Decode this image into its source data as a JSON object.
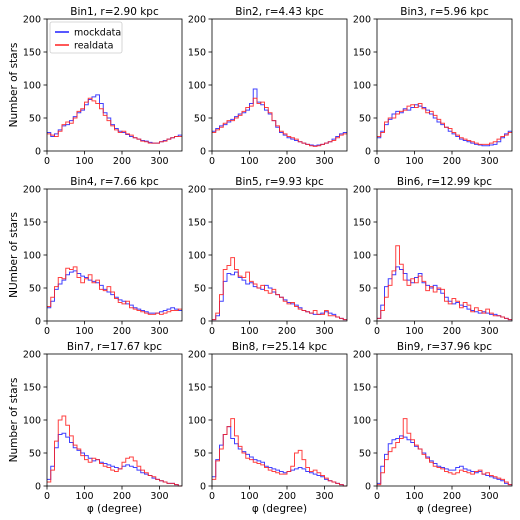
{
  "chart_data": {
    "type": "line",
    "drawstyle": "steps",
    "layout": "3x3 small multiples",
    "x_tick_labels": [
      "0",
      "100",
      "200",
      "300"
    ],
    "y_tick_labels": [
      "0",
      "50",
      "100",
      "150",
      "200"
    ],
    "xlim": [
      0,
      360
    ],
    "ylim": [
      0,
      200
    ],
    "bin_width": 10,
    "grid": false,
    "legend": {
      "placement": "top-left of first panel",
      "entries": [
        {
          "name": "mockdata",
          "color": "#1f1fff"
        },
        {
          "name": "realdata",
          "color": "#ff2020"
        }
      ]
    },
    "panels": [
      {
        "title": "Bin1, r=2.90 kpc",
        "ylabel": "Number of stars",
        "xlabel": "",
        "series": [
          {
            "name": "mockdata",
            "values": [
              28,
              22,
              26,
              32,
              38,
              40,
              46,
              52,
              58,
              62,
              70,
              78,
              82,
              85,
              72,
              58,
              50,
              40,
              34,
              30,
              28,
              25,
              22,
              20,
              18,
              16,
              15,
              13,
              12,
              12,
              14,
              16,
              18,
              20,
              22,
              24
            ]
          },
          {
            "name": "realdata",
            "values": [
              26,
              24,
              22,
              30,
              40,
              44,
              42,
              50,
              60,
              64,
              74,
              80,
              76,
              72,
              64,
              54,
              46,
              38,
              32,
              28,
              30,
              26,
              24,
              20,
              18,
              15,
              14,
              12,
              12,
              12,
              14,
              15,
              18,
              20,
              22,
              22
            ]
          }
        ]
      },
      {
        "title": "Bin2, r=4.43 kpc",
        "ylabel": "",
        "xlabel": "",
        "series": [
          {
            "name": "mockdata",
            "values": [
              30,
              34,
              38,
              40,
              44,
              48,
              52,
              56,
              58,
              62,
              72,
              94,
              74,
              70,
              62,
              56,
              46,
              36,
              28,
              24,
              20,
              18,
              16,
              14,
              12,
              10,
              9,
              8,
              9,
              10,
              12,
              14,
              18,
              22,
              26,
              28
            ]
          },
          {
            "name": "realdata",
            "values": [
              28,
              32,
              36,
              42,
              46,
              46,
              50,
              54,
              60,
              66,
              68,
              80,
              72,
              74,
              66,
              58,
              46,
              38,
              30,
              26,
              22,
              20,
              18,
              14,
              12,
              10,
              8,
              7,
              8,
              10,
              12,
              14,
              16,
              20,
              24,
              26
            ]
          }
        ]
      },
      {
        "title": "Bin3, r=5.96 kpc",
        "ylabel": "",
        "xlabel": "",
        "series": [
          {
            "name": "mockdata",
            "values": [
              20,
              30,
              40,
              48,
              56,
              60,
              58,
              64,
              62,
              66,
              70,
              68,
              66,
              62,
              56,
              50,
              44,
              40,
              36,
              30,
              26,
              22,
              18,
              16,
              14,
              12,
              10,
              9,
              8,
              8,
              9,
              10,
              14,
              20,
              26,
              30
            ]
          },
          {
            "name": "realdata",
            "values": [
              22,
              28,
              44,
              50,
              50,
              56,
              60,
              62,
              68,
              70,
              66,
              72,
              64,
              58,
              60,
              54,
              48,
              42,
              36,
              34,
              28,
              24,
              20,
              18,
              16,
              14,
              12,
              10,
              10,
              10,
              12,
              14,
              18,
              22,
              24,
              28
            ]
          }
        ]
      },
      {
        "title": "Bin4, r=7.66 kpc",
        "ylabel": "NUmber of stars",
        "xlabel": "",
        "series": [
          {
            "name": "mockdata",
            "values": [
              20,
              30,
              48,
              56,
              62,
              70,
              74,
              76,
              72,
              68,
              66,
              62,
              60,
              58,
              54,
              48,
              44,
              40,
              36,
              32,
              30,
              26,
              24,
              20,
              18,
              16,
              14,
              12,
              12,
              12,
              14,
              16,
              18,
              20,
              18,
              16
            ]
          },
          {
            "name": "realdata",
            "values": [
              22,
              36,
              52,
              66,
              64,
              80,
              78,
              82,
              66,
              58,
              64,
              70,
              58,
              62,
              48,
              46,
              52,
              44,
              34,
              28,
              26,
              30,
              20,
              18,
              16,
              14,
              12,
              10,
              10,
              12,
              10,
              12,
              14,
              16,
              16,
              18
            ]
          }
        ]
      },
      {
        "title": "Bin5, r=9.93 kpc",
        "ylabel": "",
        "xlabel": "",
        "series": [
          {
            "name": "mockdata",
            "values": [
              2,
              8,
              30,
              60,
              72,
              70,
              74,
              66,
              62,
              56,
              58,
              52,
              50,
              48,
              54,
              50,
              44,
              40,
              36,
              32,
              28,
              26,
              24,
              20,
              16,
              14,
              12,
              10,
              10,
              12,
              14,
              12,
              10,
              6,
              4,
              2
            ]
          },
          {
            "name": "realdata",
            "values": [
              2,
              12,
              40,
              78,
              84,
              96,
              78,
              68,
              66,
              74,
              60,
              56,
              50,
              54,
              46,
              42,
              48,
              40,
              36,
              30,
              26,
              28,
              22,
              18,
              16,
              14,
              12,
              16,
              10,
              10,
              16,
              8,
              8,
              6,
              4,
              2
            ]
          }
        ]
      },
      {
        "title": "Bin6, r=12.99 kpc",
        "ylabel": "",
        "xlabel": "",
        "series": [
          {
            "name": "mockdata",
            "values": [
              4,
              24,
              52,
              64,
              70,
              82,
              78,
              72,
              62,
              58,
              66,
              72,
              58,
              54,
              50,
              54,
              48,
              42,
              36,
              30,
              26,
              28,
              24,
              22,
              18,
              16,
              14,
              12,
              14,
              12,
              10,
              10,
              8,
              6,
              4,
              2
            ]
          },
          {
            "name": "realdata",
            "values": [
              4,
              16,
              36,
              54,
              76,
              114,
              86,
              62,
              54,
              64,
              58,
              68,
              60,
              46,
              52,
              44,
              50,
              48,
              30,
              26,
              34,
              30,
              20,
              28,
              24,
              14,
              20,
              16,
              12,
              18,
              12,
              8,
              8,
              6,
              4,
              2
            ]
          }
        ]
      },
      {
        "title": "Bin7, r=17.67 kpc",
        "ylabel": "Number of stars",
        "xlabel": "φ (degree)",
        "series": [
          {
            "name": "mockdata",
            "values": [
              10,
              30,
              58,
              78,
              80,
              74,
              66,
              58,
              54,
              50,
              46,
              42,
              38,
              40,
              36,
              34,
              32,
              30,
              28,
              26,
              30,
              32,
              30,
              28,
              24,
              20,
              18,
              16,
              12,
              10,
              8,
              6,
              4,
              4,
              2,
              0
            ]
          },
          {
            "name": "realdata",
            "values": [
              6,
              24,
              68,
              100,
              106,
              92,
              76,
              62,
              56,
              46,
              40,
              36,
              42,
              40,
              34,
              30,
              28,
              24,
              22,
              26,
              36,
              42,
              44,
              38,
              30,
              24,
              20,
              16,
              14,
              10,
              8,
              6,
              4,
              4,
              2,
              0
            ]
          }
        ]
      },
      {
        "title": "Bin8, r=25.14 kpc",
        "ylabel": "",
        "xlabel": "φ (degree)",
        "series": [
          {
            "name": "mockdata",
            "values": [
              14,
              40,
              62,
              78,
              90,
              72,
              64,
              56,
              52,
              48,
              44,
              40,
              38,
              36,
              30,
              28,
              26,
              24,
              22,
              20,
              22,
              24,
              26,
              28,
              26,
              22,
              20,
              18,
              16,
              14,
              10,
              8,
              6,
              4,
              2,
              0
            ]
          },
          {
            "name": "realdata",
            "values": [
              10,
              38,
              56,
              78,
              90,
              102,
              76,
              60,
              50,
              42,
              40,
              36,
              34,
              32,
              28,
              24,
              22,
              20,
              18,
              18,
              22,
              30,
              50,
              54,
              40,
              28,
              22,
              24,
              20,
              16,
              12,
              8,
              6,
              4,
              2,
              0
            ]
          }
        ]
      },
      {
        "title": "Bin9, r=37.96 kpc",
        "ylabel": "",
        "xlabel": "φ (degree)",
        "series": [
          {
            "name": "mockdata",
            "values": [
              4,
              30,
              48,
              64,
              70,
              72,
              76,
              74,
              70,
              66,
              60,
              56,
              50,
              44,
              38,
              34,
              30,
              28,
              26,
              24,
              24,
              28,
              30,
              26,
              24,
              22,
              20,
              22,
              18,
              16,
              14,
              12,
              10,
              8,
              4,
              2
            ]
          },
          {
            "name": "realdata",
            "values": [
              2,
              20,
              40,
              52,
              58,
              66,
              72,
              102,
              80,
              70,
              62,
              56,
              48,
              42,
              36,
              30,
              28,
              26,
              22,
              20,
              18,
              20,
              24,
              22,
              20,
              18,
              22,
              24,
              18,
              20,
              16,
              14,
              12,
              10,
              6,
              2
            ]
          }
        ]
      }
    ]
  }
}
